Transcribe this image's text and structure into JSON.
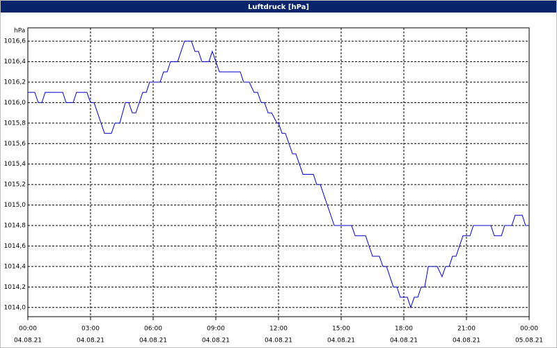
{
  "chart_data": {
    "type": "line",
    "title": "Luftdruck [hPa]",
    "y_unit": "hPa",
    "x": [
      0,
      0.33,
      0.5,
      0.67,
      0.83,
      1.67,
      1.83,
      2.17,
      2.33,
      2.83,
      3,
      3.17,
      3.67,
      4,
      4.17,
      4.4,
      4.67,
      4.83,
      5,
      5.17,
      5.5,
      5.67,
      5.83,
      6.33,
      6.5,
      6.67,
      6.83,
      7.17,
      7.5,
      7.83,
      8,
      8.17,
      8.33,
      8.67,
      8.83,
      9.17,
      10.17,
      10.33,
      10.6,
      10.83,
      11,
      11.17,
      11.33,
      11.5,
      11.67,
      11.93,
      12,
      12.17,
      12.33,
      12.67,
      12.83,
      13.17,
      13.67,
      13.83,
      14,
      14.67,
      15.5,
      15.67,
      16.17,
      16.5,
      16.83,
      17,
      17.17,
      17.5,
      17.67,
      17.83,
      18.17,
      18.33,
      18.5,
      18.67,
      18.83,
      19,
      19.17,
      19.6,
      19.83,
      20,
      20.17,
      20.33,
      20.5,
      20.83,
      21.17,
      21.33,
      22.17,
      22.33,
      22.67,
      22.83,
      23.17,
      23.33,
      23.67,
      23.83,
      24
    ],
    "series": [
      {
        "name": "Luftdruck",
        "color": "#0000c8",
        "values": [
          1016.1,
          1016.1,
          1016.0,
          1016.0,
          1016.1,
          1016.1,
          1016.0,
          1016.0,
          1016.1,
          1016.1,
          1016.0,
          1016.0,
          1015.7,
          1015.7,
          1015.8,
          1015.8,
          1016.0,
          1016.0,
          1015.9,
          1015.9,
          1016.1,
          1016.1,
          1016.2,
          1016.2,
          1016.3,
          1016.3,
          1016.4,
          1016.4,
          1016.6,
          1016.6,
          1016.5,
          1016.5,
          1016.4,
          1016.4,
          1016.5,
          1016.3,
          1016.3,
          1016.2,
          1016.2,
          1016.1,
          1016.1,
          1016.0,
          1016.0,
          1015.9,
          1015.9,
          1015.8,
          1015.8,
          1015.7,
          1015.7,
          1015.5,
          1015.5,
          1015.3,
          1015.3,
          1015.2,
          1015.2,
          1014.8,
          1014.8,
          1014.7,
          1014.7,
          1014.5,
          1014.5,
          1014.4,
          1014.4,
          1014.2,
          1014.2,
          1014.1,
          1014.1,
          1014.0,
          1014.1,
          1014.1,
          1014.2,
          1014.2,
          1014.4,
          1014.4,
          1014.3,
          1014.4,
          1014.4,
          1014.5,
          1014.5,
          1014.7,
          1014.7,
          1014.8,
          1014.8,
          1014.7,
          1014.7,
          1014.8,
          1014.8,
          1014.9,
          1014.9,
          1014.8,
          1014.8
        ]
      }
    ],
    "xlim": [
      0,
      24
    ],
    "xticks": [
      {
        "value": 0,
        "label": "00:00"
      },
      {
        "value": 3,
        "label": "03:00"
      },
      {
        "value": 6,
        "label": "06:00"
      },
      {
        "value": 9,
        "label": "09:00"
      },
      {
        "value": 12,
        "label": "12:00"
      },
      {
        "value": 15,
        "label": "15:00"
      },
      {
        "value": 18,
        "label": "18:00"
      },
      {
        "value": 21,
        "label": "21:00"
      },
      {
        "value": 24,
        "label": "00:00"
      }
    ],
    "xtick_dates": [
      "04.08.21",
      "04.08.21",
      "04.08.21",
      "04.08.21",
      "04.08.21",
      "04.08.21",
      "04.08.21",
      "04.08.21",
      "05.08.21"
    ],
    "ylim": [
      1013.91,
      1016.73
    ],
    "yticks": [
      {
        "value": 1014.0,
        "label": "1014,0"
      },
      {
        "value": 1014.2,
        "label": "1014,2"
      },
      {
        "value": 1014.4,
        "label": "1014,4"
      },
      {
        "value": 1014.6,
        "label": "1014,6"
      },
      {
        "value": 1014.8,
        "label": "1014,8"
      },
      {
        "value": 1015.0,
        "label": "1015,0"
      },
      {
        "value": 1015.2,
        "label": "1015,2"
      },
      {
        "value": 1015.4,
        "label": "1015,4"
      },
      {
        "value": 1015.6,
        "label": "1015,6"
      },
      {
        "value": 1015.8,
        "label": "1015,8"
      },
      {
        "value": 1016.0,
        "label": "1016,0"
      },
      {
        "value": 1016.2,
        "label": "1016,2"
      },
      {
        "value": 1016.4,
        "label": "1016,4"
      },
      {
        "value": 1016.6,
        "label": "1016,6"
      }
    ],
    "grid": true
  }
}
